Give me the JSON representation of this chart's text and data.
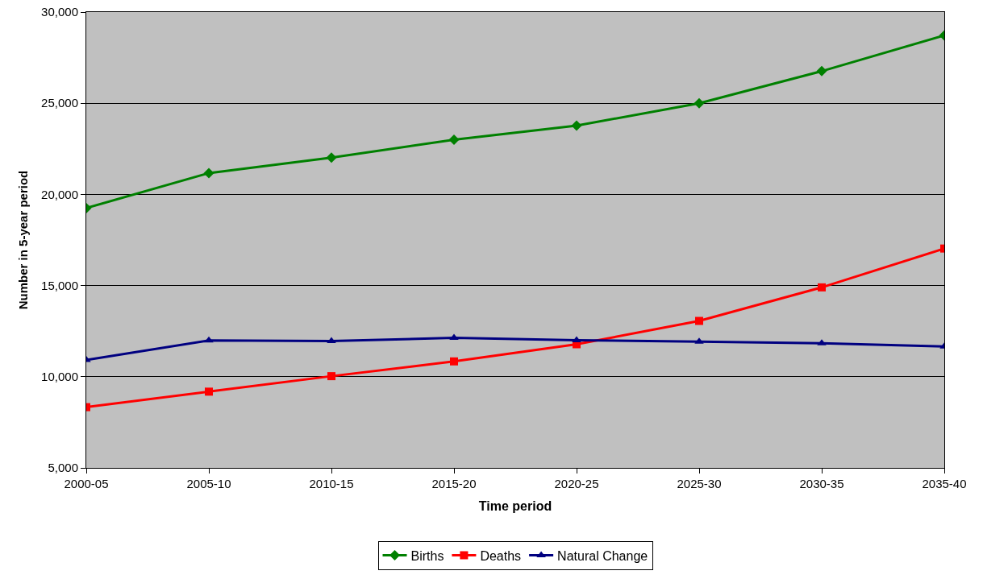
{
  "chart_data": {
    "type": "line",
    "xlabel": "Time period",
    "ylabel": "Number in 5-year period",
    "categories": [
      "2000-05",
      "2005-10",
      "2010-15",
      "2015-20",
      "2020-25",
      "2025-30",
      "2030-35",
      "2035-40"
    ],
    "series": [
      {
        "name": "Births",
        "color": "#008000",
        "marker": "diamond",
        "values": [
          19250,
          21170,
          22020,
          23000,
          23770,
          25000,
          26760,
          28720
        ]
      },
      {
        "name": "Deaths",
        "color": "#ff0000",
        "marker": "square",
        "values": [
          8330,
          9180,
          10030,
          10840,
          11780,
          13060,
          14900,
          17030
        ]
      },
      {
        "name": "Natural Change",
        "color": "#000080",
        "marker": "triangle",
        "values": [
          10920,
          11990,
          11960,
          12130,
          12000,
          11920,
          11830,
          11660
        ]
      }
    ],
    "ylim": [
      5000,
      30000
    ],
    "yticks": [
      {
        "value": 5000,
        "label": "5,000"
      },
      {
        "value": 10000,
        "label": "10,000"
      },
      {
        "value": 15000,
        "label": "15,000"
      },
      {
        "value": 20000,
        "label": "20,000"
      },
      {
        "value": 25000,
        "label": "25,000"
      },
      {
        "value": 30000,
        "label": "30,000"
      }
    ],
    "grid": "y",
    "legend": "bottom",
    "line_style": "solid"
  }
}
